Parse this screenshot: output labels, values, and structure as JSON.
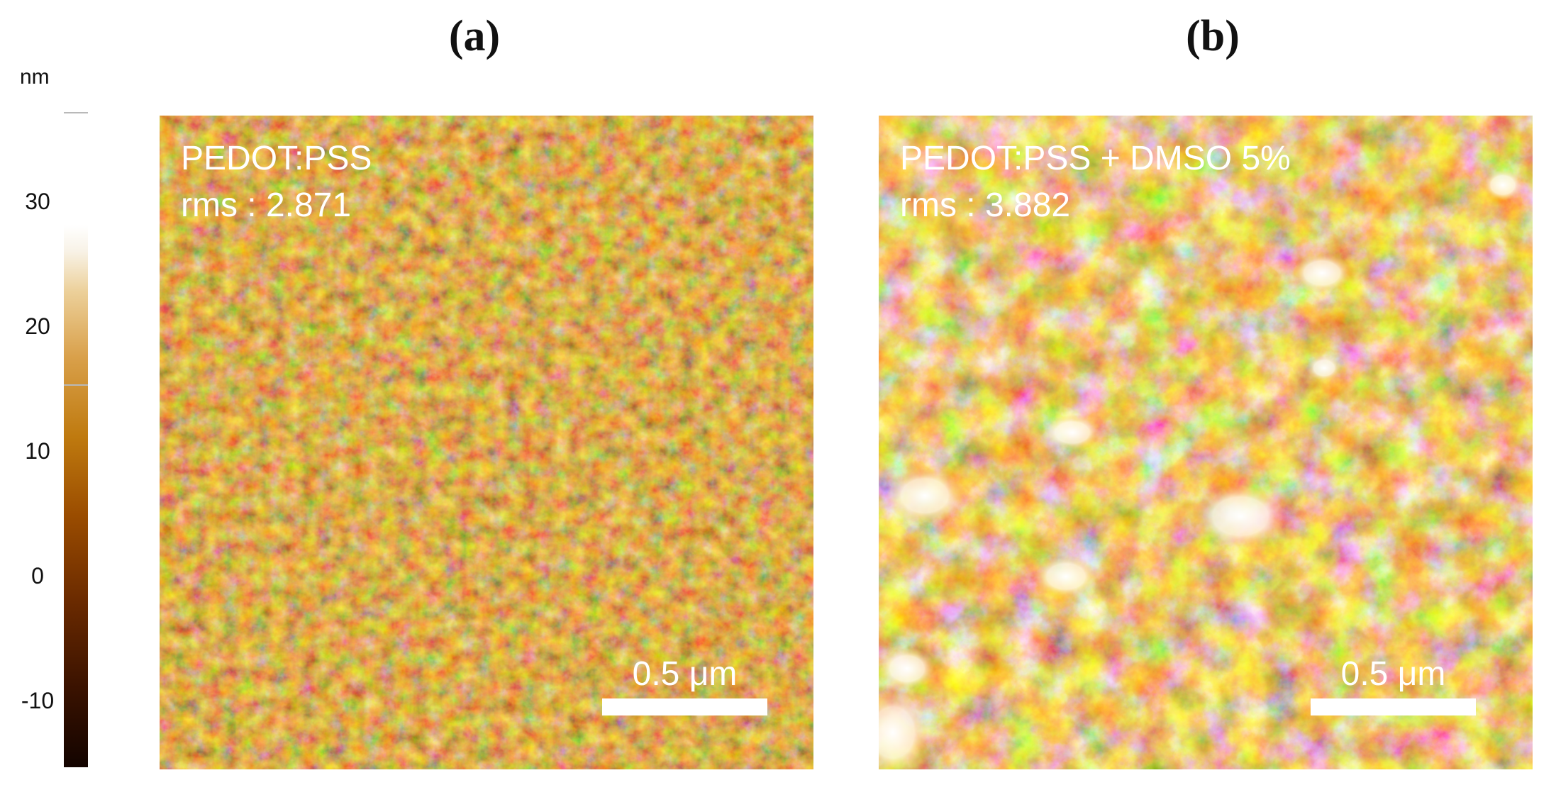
{
  "figure": {
    "colorbar": {
      "unit": "nm",
      "ticks": [
        "30",
        "20",
        "10",
        "0",
        "-10"
      ],
      "colors": {
        "dark": "#130400",
        "mid": "#bf7a0f",
        "light": "#ffffff"
      }
    },
    "panels": [
      {
        "label": "(a)",
        "sample": "PEDOT:PSS",
        "rms": "rms : 2.871",
        "scale_bar": "0.5 μm",
        "texture": "fine"
      },
      {
        "label": "(b)",
        "sample": "PEDOT:PSS + DMSO 5%",
        "rms": "rms : 3.882",
        "scale_bar": "0.5 μm",
        "texture": "coarse"
      }
    ]
  }
}
